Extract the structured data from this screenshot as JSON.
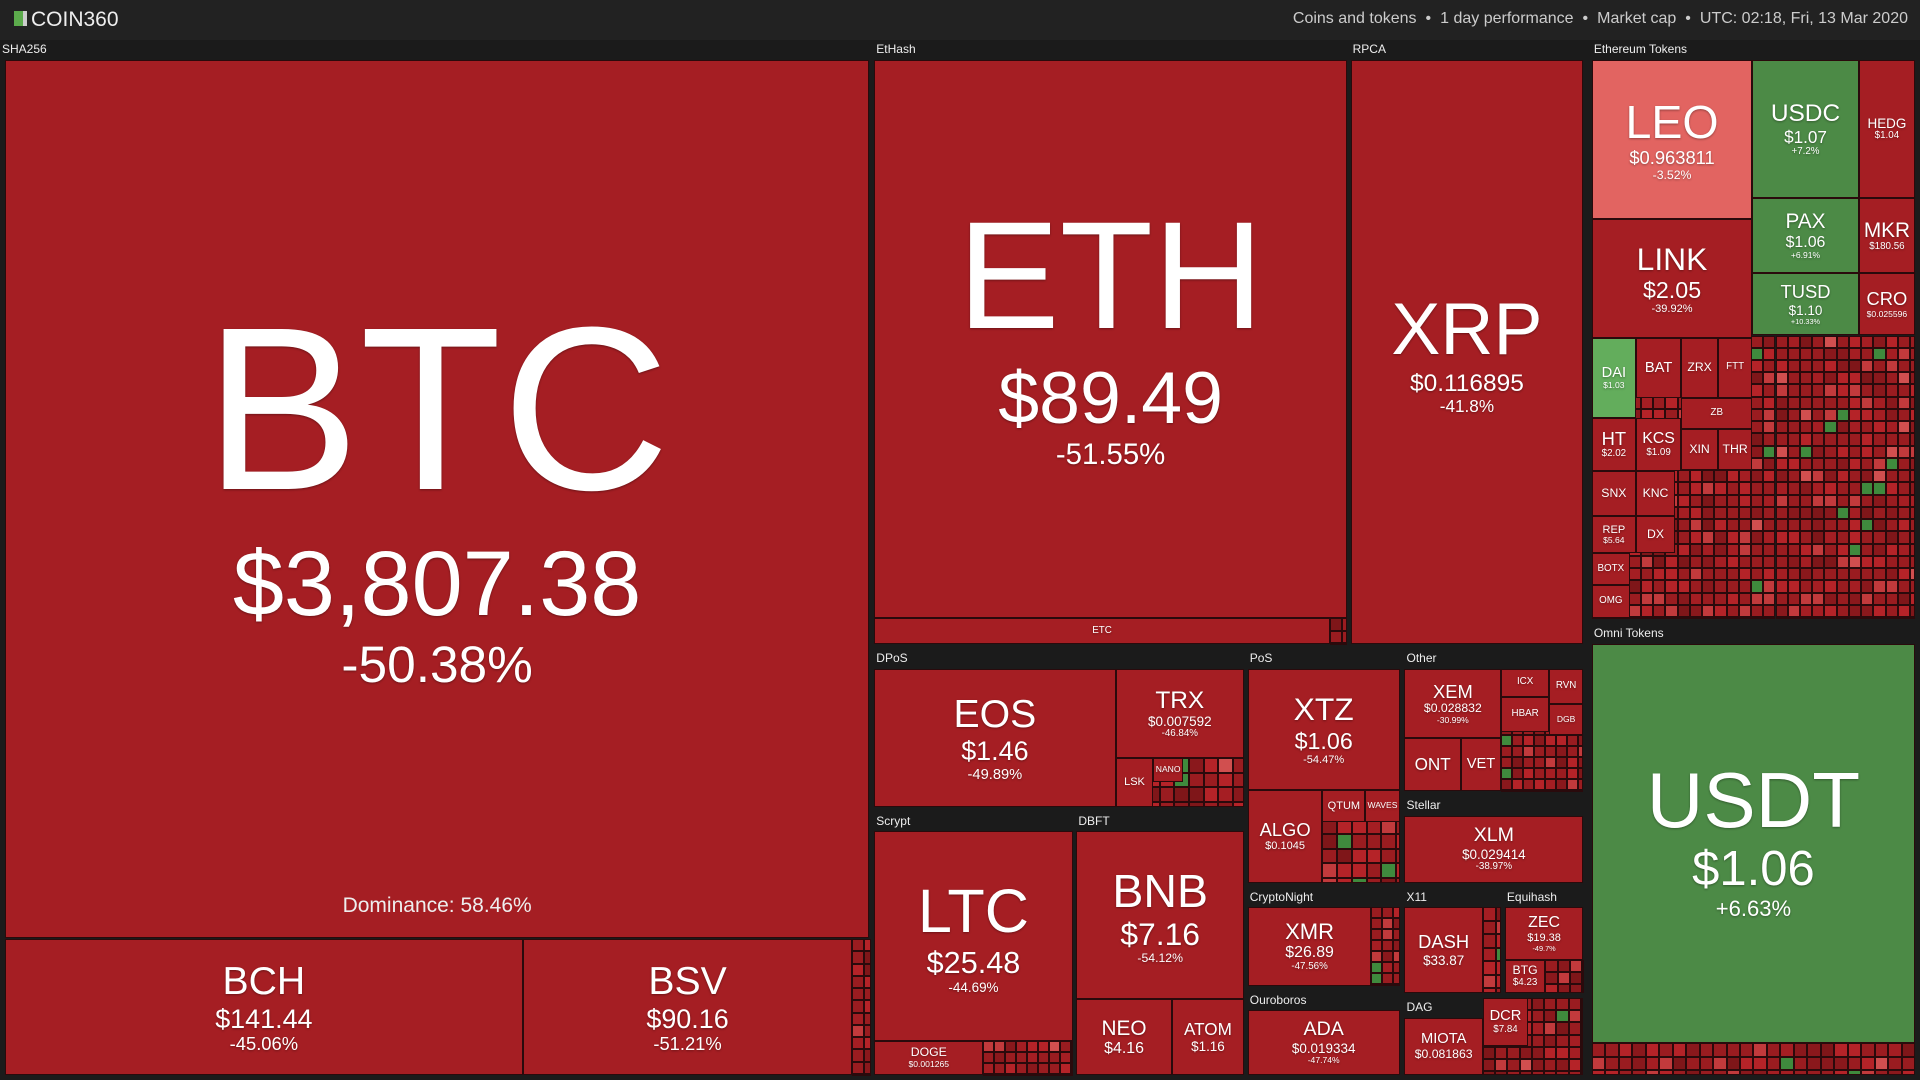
{
  "header": {
    "logo": "COIN360",
    "items": [
      "Coins and tokens",
      "1 day performance",
      "Market cap",
      "UTC: 02:18, Fri, 13 Mar 2020"
    ]
  },
  "sections": [
    {
      "name": "SHA256",
      "dominance": "Dominance: 58.46%",
      "tiles": [
        {
          "symbol": "BTC",
          "price": "$3,807.38",
          "change": "-50.38%"
        },
        {
          "symbol": "BCH",
          "price": "$141.44",
          "change": "-45.06%"
        },
        {
          "symbol": "BSV",
          "price": "$90.16",
          "change": "-51.21%"
        }
      ]
    },
    {
      "name": "EtHash",
      "tiles": [
        {
          "symbol": "ETH",
          "price": "$89.49",
          "change": "-51.55%"
        },
        {
          "symbol": "ETC"
        }
      ]
    },
    {
      "name": "RPCA",
      "tiles": [
        {
          "symbol": "XRP",
          "price": "$0.116895",
          "change": "-41.8%"
        }
      ]
    },
    {
      "name": "Ethereum Tokens",
      "tiles": [
        {
          "symbol": "LEO",
          "price": "$0.963811",
          "change": "-3.52%"
        },
        {
          "symbol": "USDC",
          "price": "$1.07",
          "change": "+7.2%"
        },
        {
          "symbol": "HEDG",
          "price": "$1.04"
        },
        {
          "symbol": "PAX",
          "price": "$1.06",
          "change": "+6.91%"
        },
        {
          "symbol": "MKR",
          "price": "$180.56"
        },
        {
          "symbol": "TUSD",
          "price": "$1.10",
          "change": "+10.33%"
        },
        {
          "symbol": "CRO",
          "price": "$0.025596"
        },
        {
          "symbol": "LINK",
          "price": "$2.05",
          "change": "-39.92%"
        },
        {
          "symbol": "DAI",
          "price": "$1.03"
        },
        {
          "symbol": "BAT"
        },
        {
          "symbol": "ZRX"
        },
        {
          "symbol": "FTT"
        },
        {
          "symbol": "ZB"
        },
        {
          "symbol": "XIN"
        },
        {
          "symbol": "THR"
        },
        {
          "symbol": "HT",
          "price": "$2.02"
        },
        {
          "symbol": "KCS",
          "price": "$1.09"
        },
        {
          "symbol": "SNX"
        },
        {
          "symbol": "KNC"
        },
        {
          "symbol": "REP",
          "price": "$5.64"
        },
        {
          "symbol": "DX"
        },
        {
          "symbol": "BOTX"
        },
        {
          "symbol": "OMG"
        }
      ]
    },
    {
      "name": "Omni Tokens",
      "tiles": [
        {
          "symbol": "USDT",
          "price": "$1.06",
          "change": "+6.63%"
        }
      ]
    },
    {
      "name": "DPoS",
      "tiles": [
        {
          "symbol": "EOS",
          "price": "$1.46",
          "change": "-49.89%"
        },
        {
          "symbol": "TRX",
          "price": "$0.007592",
          "change": "-46.84%"
        },
        {
          "symbol": "LSK"
        },
        {
          "symbol": "NANO"
        }
      ]
    },
    {
      "name": "PoS",
      "tiles": [
        {
          "symbol": "XTZ",
          "price": "$1.06",
          "change": "-54.47%"
        },
        {
          "symbol": "ALGO",
          "price": "$0.1045"
        },
        {
          "symbol": "QTUM"
        },
        {
          "symbol": "WAVES"
        }
      ]
    },
    {
      "name": "Other",
      "tiles": [
        {
          "symbol": "XEM",
          "price": "$0.028832",
          "change": "-30.99%"
        },
        {
          "symbol": "ONT"
        },
        {
          "symbol": "VET"
        },
        {
          "symbol": "ICX"
        },
        {
          "symbol": "HBAR"
        },
        {
          "symbol": "RVN"
        },
        {
          "symbol": "DGB"
        }
      ]
    },
    {
      "name": "Scrypt",
      "tiles": [
        {
          "symbol": "LTC",
          "price": "$25.48",
          "change": "-44.69%"
        },
        {
          "symbol": "DOGE",
          "price": "$0.001265"
        }
      ]
    },
    {
      "name": "DBFT",
      "tiles": [
        {
          "symbol": "BNB",
          "price": "$7.16",
          "change": "-54.12%"
        },
        {
          "symbol": "NEO",
          "price": "$4.16"
        },
        {
          "symbol": "ATOM",
          "price": "$1.16"
        }
      ]
    },
    {
      "name": "Stellar",
      "tiles": [
        {
          "symbol": "XLM",
          "price": "$0.029414",
          "change": "-38.97%"
        }
      ]
    },
    {
      "name": "CryptoNight",
      "tiles": [
        {
          "symbol": "XMR",
          "price": "$26.89",
          "change": "-47.56%"
        }
      ]
    },
    {
      "name": "X11",
      "tiles": [
        {
          "symbol": "DASH",
          "price": "$33.87"
        }
      ]
    },
    {
      "name": "Equihash",
      "tiles": [
        {
          "symbol": "ZEC",
          "price": "$19.38",
          "change": "-49.7%"
        },
        {
          "symbol": "BTG",
          "price": "$4.23"
        }
      ]
    },
    {
      "name": "Ouroboros",
      "tiles": [
        {
          "symbol": "ADA",
          "price": "$0.019334",
          "change": "-47.74%"
        }
      ]
    },
    {
      "name": "DAG",
      "tiles": [
        {
          "symbol": "MIOTA",
          "price": "$0.081863"
        },
        {
          "symbol": "DCR",
          "price": "$7.84"
        }
      ]
    }
  ]
}
